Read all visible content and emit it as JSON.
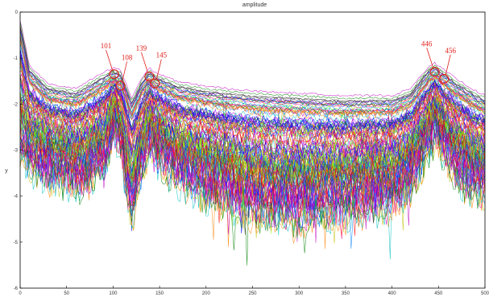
{
  "chart_data": {
    "type": "line",
    "title": "amplitude",
    "xlabel": "",
    "ylabel": "y",
    "xlim": [
      0,
      500
    ],
    "ylim": [
      -6,
      0
    ],
    "x_ticks": [
      "0",
      "50",
      "100",
      "150",
      "200",
      "250",
      "300",
      "350",
      "400",
      "450",
      "500"
    ],
    "y_ticks": [
      "0",
      "-1",
      "-2",
      "-3",
      "-4",
      "-5",
      "-6"
    ],
    "grid": false,
    "num_series": 110,
    "envelope": {
      "x": [
        0,
        10,
        30,
        60,
        90,
        101,
        108,
        120,
        130,
        139,
        145,
        170,
        200,
        250,
        300,
        350,
        400,
        420,
        440,
        446,
        456,
        470,
        490,
        500
      ],
      "upper": [
        -0.3,
        -1.3,
        -1.7,
        -1.8,
        -1.45,
        -1.35,
        -1.4,
        -2.0,
        -1.6,
        -1.35,
        -1.45,
        -1.65,
        -1.75,
        -1.85,
        -1.9,
        -1.95,
        -1.95,
        -1.8,
        -1.3,
        -1.25,
        -1.4,
        -1.6,
        -1.85,
        -1.95
      ],
      "mean": [
        -1.0,
        -2.1,
        -2.4,
        -2.6,
        -2.1,
        -1.55,
        -1.75,
        -3.0,
        -2.3,
        -1.6,
        -1.9,
        -2.3,
        -2.5,
        -2.6,
        -2.65,
        -2.7,
        -2.7,
        -2.4,
        -1.7,
        -1.5,
        -1.8,
        -2.3,
        -2.6,
        -2.75
      ],
      "lower": [
        -3.2,
        -3.4,
        -3.6,
        -3.8,
        -3.5,
        -2.6,
        -3.0,
        -4.6,
        -3.6,
        -2.9,
        -3.2,
        -3.7,
        -4.0,
        -4.4,
        -4.5,
        -4.4,
        -4.2,
        -3.8,
        -3.0,
        -2.7,
        -3.1,
        -3.6,
        -3.9,
        -4.0
      ]
    },
    "markers": [
      {
        "x": 101,
        "y": -1.35,
        "label": "101"
      },
      {
        "x": 108,
        "y": -1.6,
        "label": "108"
      },
      {
        "x": 139,
        "y": -1.4,
        "label": "139"
      },
      {
        "x": 145,
        "y": -1.55,
        "label": "145"
      },
      {
        "x": 446,
        "y": -1.3,
        "label": "446"
      },
      {
        "x": 456,
        "y": -1.45,
        "label": "456"
      }
    ],
    "colors": {
      "axis": "#000000",
      "annotation": "#e0201c",
      "series_palette": [
        "#0000ff",
        "#008000",
        "#ff0000",
        "#00bfbf",
        "#bf00bf",
        "#bfbf00",
        "#404040",
        "#ff8000",
        "#0080ff",
        "#80ff00",
        "#ff0080",
        "#8000ff"
      ]
    }
  }
}
